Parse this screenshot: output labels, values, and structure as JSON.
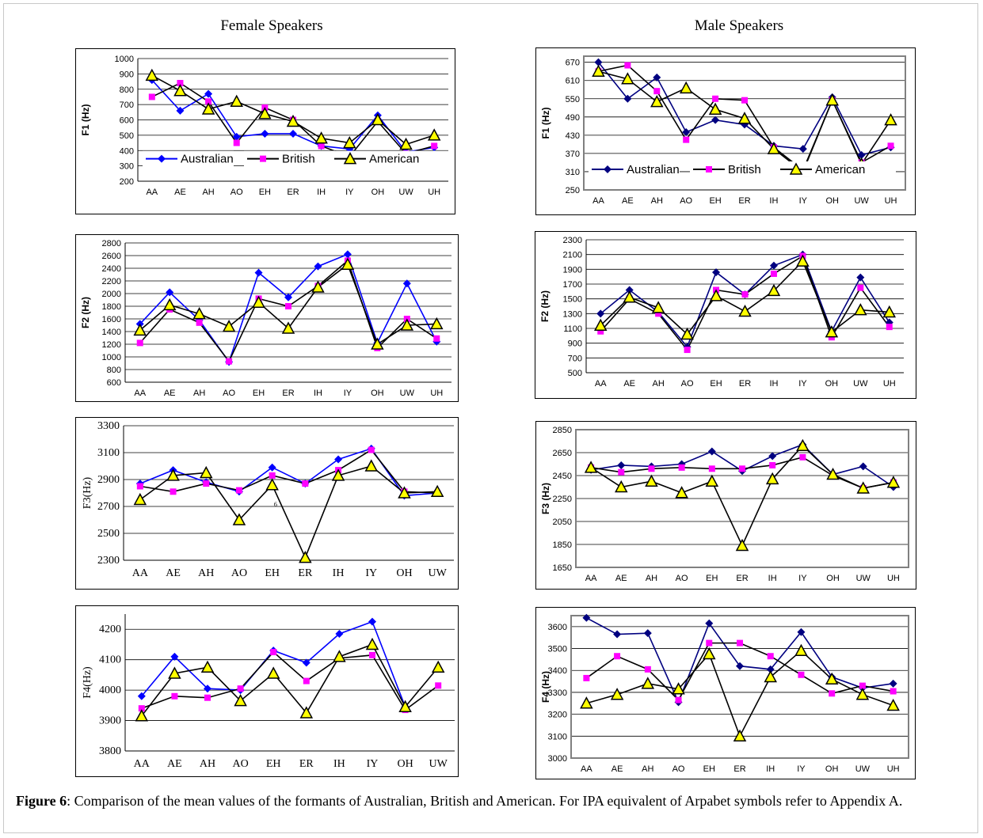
{
  "page": {
    "female_title": "Female Speakers",
    "male_title": "Male Speakers",
    "caption_label": "Figure 6",
    "caption_text": ": Comparison of the mean values of the formants of Australian, British and American. For IPA equivalent of Arpabet symbols refer to Appendix A.",
    "page_number": "6"
  },
  "series_styles": {
    "Australian": {
      "color": "#0000ff",
      "marker": "diamond"
    },
    "British": {
      "color": "#ff00ff",
      "marker": "square"
    },
    "American": {
      "color": "#000000",
      "fill": "#ffff00",
      "marker": "triangle"
    }
  },
  "chart_data": [
    {
      "id": "female-f1",
      "type": "line",
      "ylabel": "F1 (Hz)",
      "ylim": [
        200,
        1000
      ],
      "yticks": [
        200,
        300,
        400,
        500,
        600,
        700,
        800,
        900,
        1000
      ],
      "categories": [
        "AA",
        "AE",
        "AH",
        "AO",
        "EH",
        "ER",
        "IH",
        "IY",
        "OH",
        "UW",
        "UH"
      ],
      "legend": "inside-bottom",
      "aus_color": "#0000ff",
      "series": [
        {
          "name": "Australian",
          "values": [
            860,
            660,
            770,
            490,
            510,
            510,
            430,
            410,
            630,
            390,
            420
          ]
        },
        {
          "name": "British",
          "values": [
            750,
            840,
            720,
            450,
            680,
            600,
            430,
            360,
            590,
            380,
            430
          ]
        },
        {
          "name": "American",
          "values": [
            890,
            790,
            670,
            720,
            640,
            590,
            480,
            450,
            600,
            440,
            500
          ]
        }
      ]
    },
    {
      "id": "female-f2",
      "type": "line",
      "ylabel": "F2 (Hz)",
      "ylim": [
        600,
        2800
      ],
      "yticks": [
        600,
        800,
        1000,
        1200,
        1400,
        1600,
        1800,
        2000,
        2200,
        2400,
        2600,
        2800
      ],
      "categories": [
        "AA",
        "AE",
        "AH",
        "AO",
        "EH",
        "ER",
        "IH",
        "IY",
        "OH",
        "UW",
        "UH"
      ],
      "aus_color": "#0000ff",
      "series": [
        {
          "name": "Australian",
          "values": [
            1520,
            2020,
            1580,
            920,
            2330,
            1940,
            2430,
            2620,
            1220,
            2160,
            1240
          ]
        },
        {
          "name": "British",
          "values": [
            1220,
            1750,
            1540,
            930,
            1920,
            1800,
            2120,
            2520,
            1140,
            1600,
            1290
          ]
        },
        {
          "name": "American",
          "values": [
            1420,
            1820,
            1680,
            1480,
            1860,
            1450,
            2100,
            2460,
            1200,
            1500,
            1520
          ]
        }
      ]
    },
    {
      "id": "female-f3",
      "type": "line",
      "ylabel": "F3(Hz)",
      "ylim": [
        2300,
        3300
      ],
      "yticks": [
        2300,
        2500,
        2700,
        2900,
        3100,
        3300
      ],
      "categories": [
        "AA",
        "AE",
        "AH",
        "AO",
        "EH",
        "ER",
        "IH",
        "IY",
        "OH",
        "UW"
      ],
      "aus_color": "#0000ff",
      "series": [
        {
          "name": "Australian",
          "values": [
            2870,
            2970,
            2880,
            2810,
            2990,
            2870,
            3050,
            3130,
            2780,
            2800
          ]
        },
        {
          "name": "British",
          "values": [
            2850,
            2810,
            2870,
            2820,
            2930,
            2870,
            2970,
            3120,
            2810,
            2800
          ]
        },
        {
          "name": "American",
          "values": [
            2750,
            2930,
            2950,
            2600,
            2860,
            2320,
            2930,
            3000,
            2800,
            2810
          ]
        }
      ]
    },
    {
      "id": "female-f4",
      "type": "line",
      "ylabel": "F4(Hz)",
      "ylim": [
        3800,
        4250
      ],
      "yticks": [
        3800,
        3900,
        4000,
        4100,
        4200
      ],
      "categories": [
        "AA",
        "AE",
        "AH",
        "AO",
        "EH",
        "ER",
        "IH",
        "IY",
        "OH",
        "UW"
      ],
      "aus_color": "#0000ff",
      "series": [
        {
          "name": "Australian",
          "values": [
            3980,
            4110,
            4005,
            4000,
            4130,
            4090,
            4185,
            4225,
            3945,
            null
          ]
        },
        {
          "name": "British",
          "values": [
            3940,
            3980,
            3975,
            4005,
            4125,
            4030,
            4105,
            4115,
            3935,
            4015
          ]
        },
        {
          "name": "American",
          "values": [
            3915,
            4055,
            4075,
            3965,
            4055,
            3925,
            4110,
            4150,
            3945,
            4075
          ]
        }
      ]
    },
    {
      "id": "male-f1",
      "type": "line",
      "ylabel": "F1 (Hz)",
      "ylim": [
        250,
        690
      ],
      "yticks": [
        250,
        310,
        370,
        430,
        490,
        550,
        610,
        670
      ],
      "categories": [
        "AA",
        "AE",
        "AH",
        "AO",
        "EH",
        "ER",
        "IH",
        "IY",
        "OH",
        "UW",
        "UH"
      ],
      "legend": "inside-bottom",
      "aus_color": "#000080",
      "series": [
        {
          "name": "Australian",
          "values": [
            670,
            550,
            620,
            440,
            480,
            465,
            395,
            385,
            555,
            365,
            390
          ]
        },
        {
          "name": "British",
          "values": [
            640,
            660,
            575,
            415,
            550,
            545,
            390,
            315,
            545,
            340,
            395
          ]
        },
        {
          "name": "American",
          "values": [
            640,
            615,
            540,
            585,
            515,
            485,
            385,
            310,
            545,
            335,
            480
          ]
        }
      ]
    },
    {
      "id": "male-f2",
      "type": "line",
      "ylabel": "F2 (Hz)",
      "ylim": [
        500,
        2300
      ],
      "yticks": [
        500,
        700,
        900,
        1100,
        1300,
        1500,
        1700,
        1900,
        2100,
        2300
      ],
      "categories": [
        "AA",
        "AE",
        "AH",
        "AO",
        "EH",
        "ER",
        "IH",
        "IY",
        "OH",
        "UW",
        "UH"
      ],
      "aus_color": "#000080",
      "series": [
        {
          "name": "Australian",
          "values": [
            1300,
            1620,
            1320,
            850,
            1860,
            1560,
            1950,
            2100,
            1060,
            1790,
            1180
          ]
        },
        {
          "name": "British",
          "values": [
            1060,
            1500,
            1300,
            810,
            1620,
            1560,
            1840,
            2080,
            980,
            1650,
            1120
          ]
        },
        {
          "name": "American",
          "values": [
            1140,
            1520,
            1380,
            1020,
            1540,
            1330,
            1610,
            2010,
            1050,
            1350,
            1320
          ]
        }
      ]
    },
    {
      "id": "male-f3",
      "type": "line",
      "ylabel": "F3 (Hz)",
      "ylim": [
        1650,
        2850
      ],
      "yticks": [
        1650,
        1850,
        2050,
        2250,
        2450,
        2650,
        2850
      ],
      "categories": [
        "AA",
        "AE",
        "AH",
        "AO",
        "EH",
        "ER",
        "IH",
        "IY",
        "OH",
        "UW",
        "UH"
      ],
      "aus_color": "#000080",
      "series": [
        {
          "name": "Australian",
          "values": [
            2500,
            2540,
            2530,
            2550,
            2660,
            2490,
            2620,
            2720,
            2460,
            2530,
            2350
          ]
        },
        {
          "name": "British",
          "values": [
            2520,
            2480,
            2510,
            2520,
            2510,
            2510,
            2540,
            2610,
            2450,
            2340,
            2390
          ]
        },
        {
          "name": "American",
          "values": [
            2520,
            2350,
            2400,
            2300,
            2400,
            1840,
            2420,
            2710,
            2460,
            2340,
            2390
          ]
        }
      ]
    },
    {
      "id": "male-f4",
      "type": "line",
      "ylabel": "F4 (Hz)",
      "ylim": [
        3000,
        3650
      ],
      "yticks": [
        3000,
        3100,
        3200,
        3300,
        3400,
        3500,
        3600
      ],
      "categories": [
        "AA",
        "AE",
        "AH",
        "AO",
        "EH",
        "ER",
        "IH",
        "IY",
        "OH",
        "UW",
        "UH"
      ],
      "aus_color": "#000080",
      "series": [
        {
          "name": "Australian",
          "values": [
            3640,
            3565,
            3570,
            3255,
            3615,
            3420,
            3405,
            3575,
            3370,
            3320,
            3340
          ]
        },
        {
          "name": "British",
          "values": [
            3365,
            3465,
            3405,
            3265,
            3525,
            3525,
            3465,
            3380,
            3295,
            3330,
            3305
          ]
        },
        {
          "name": "American",
          "values": [
            3250,
            3290,
            3340,
            3315,
            3475,
            3100,
            3370,
            3490,
            3360,
            3290,
            3240
          ]
        }
      ]
    }
  ]
}
